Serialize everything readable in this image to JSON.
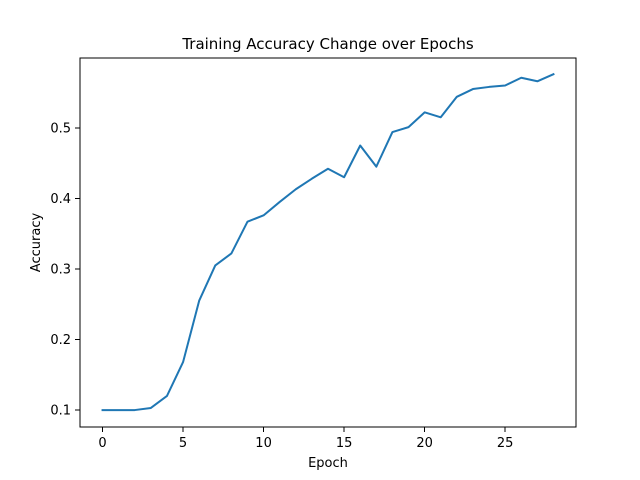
{
  "chart_data": {
    "type": "line",
    "title": "Training Accuracy Change over Epochs",
    "xlabel": "Epoch",
    "ylabel": "Accuracy",
    "xlim": [
      -1.4,
      29.4
    ],
    "ylim": [
      0.076,
      0.599
    ],
    "xticks": [
      0,
      5,
      10,
      15,
      20,
      25
    ],
    "xtick_labels": [
      "0",
      "5",
      "10",
      "15",
      "20",
      "25"
    ],
    "yticks": [
      0.1,
      0.2,
      0.3,
      0.4,
      0.5
    ],
    "ytick_labels": [
      "0.1",
      "0.2",
      "0.3",
      "0.4",
      "0.5"
    ],
    "grid": false,
    "series": [
      {
        "color": "#1f77b4",
        "x": [
          0,
          1,
          2,
          3,
          4,
          5,
          6,
          7,
          8,
          9,
          10,
          11,
          12,
          13,
          14,
          15,
          16,
          17,
          18,
          19,
          20,
          21,
          22,
          23,
          24,
          25,
          26,
          27,
          28
        ],
        "y": [
          0.1,
          0.1,
          0.1,
          0.103,
          0.12,
          0.168,
          0.255,
          0.305,
          0.322,
          0.367,
          0.376,
          0.395,
          0.413,
          0.428,
          0.442,
          0.43,
          0.475,
          0.445,
          0.494,
          0.501,
          0.522,
          0.515,
          0.544,
          0.555,
          0.558,
          0.56,
          0.571,
          0.566,
          0.576
        ]
      }
    ]
  }
}
